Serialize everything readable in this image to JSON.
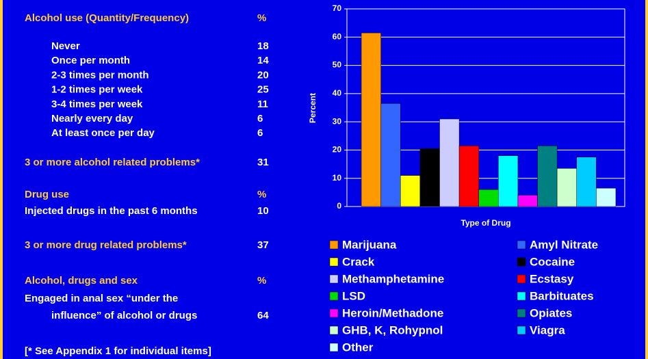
{
  "panel": {
    "alcohol_header": {
      "label": "Alcohol use (Quantity/Frequency)",
      "unit": "%"
    },
    "alcohol_rows": [
      {
        "label": "Never",
        "value": 18
      },
      {
        "label": "Once per month",
        "value": 14
      },
      {
        "label": "2-3 times per month",
        "value": 20
      },
      {
        "label": "1-2 times per week",
        "value": 25
      },
      {
        "label": "3-4 times per week",
        "value": 11
      },
      {
        "label": "Nearly every day",
        "value": 6
      },
      {
        "label": "At least once per day",
        "value": 6
      }
    ],
    "alcohol_problems": {
      "label": "3 or more alcohol related problems*",
      "value": 31
    },
    "drug_header": {
      "label": "Drug use",
      "unit": "%"
    },
    "injected": {
      "label": "Injected drugs in the past 6 months",
      "value": 10
    },
    "drug_problems": {
      "label": "3 or more drug related problems*",
      "value": 37
    },
    "sex_header": {
      "label": "Alcohol, drugs and sex",
      "unit": "%"
    },
    "sex": {
      "label_lines": [
        "Engaged in anal sex “under the",
        "influence” of alcohol or drugs"
      ],
      "value": 64
    },
    "footnote": "[* See Appendix 1 for individual items]"
  },
  "chart_data": {
    "type": "bar",
    "xlabel": "Type of Drug",
    "ylabel": "Percent",
    "categories": [
      null
    ],
    "series": [
      {
        "name": "Marijuana",
        "color": "#ff9900",
        "values": [
          61.5
        ]
      },
      {
        "name": "Amyl Nitrate",
        "color": "#3366ff",
        "values": [
          36.5
        ]
      },
      {
        "name": "Crack",
        "color": "#ffff00",
        "values": [
          11
        ]
      },
      {
        "name": "Cocaine",
        "color": "#000000",
        "values": [
          20.5
        ]
      },
      {
        "name": "Methamphetamine",
        "color": "#ccccff",
        "values": [
          31
        ]
      },
      {
        "name": "Ecstasy",
        "color": "#ff0000",
        "values": [
          21.5
        ]
      },
      {
        "name": "LSD",
        "color": "#00dd00",
        "values": [
          6
        ]
      },
      {
        "name": "Barbituates",
        "color": "#00ffff",
        "values": [
          18
        ]
      },
      {
        "name": "Heroin/Methadone",
        "color": "#ff00ff",
        "values": [
          4
        ]
      },
      {
        "name": "Opiates",
        "color": "#008080",
        "values": [
          21.5
        ]
      },
      {
        "name": "GHB, K, Rohypnol",
        "color": "#ccffcc",
        "values": [
          13.5
        ]
      },
      {
        "name": "Viagra",
        "color": "#00ccff",
        "values": [
          17.5
        ]
      },
      {
        "name": "Other",
        "color": "#ccffff",
        "values": [
          6.5
        ]
      }
    ],
    "ylim": [
      0,
      70
    ],
    "yticks": [
      0,
      10,
      20,
      30,
      40,
      50,
      60,
      70
    ],
    "grid": true
  }
}
